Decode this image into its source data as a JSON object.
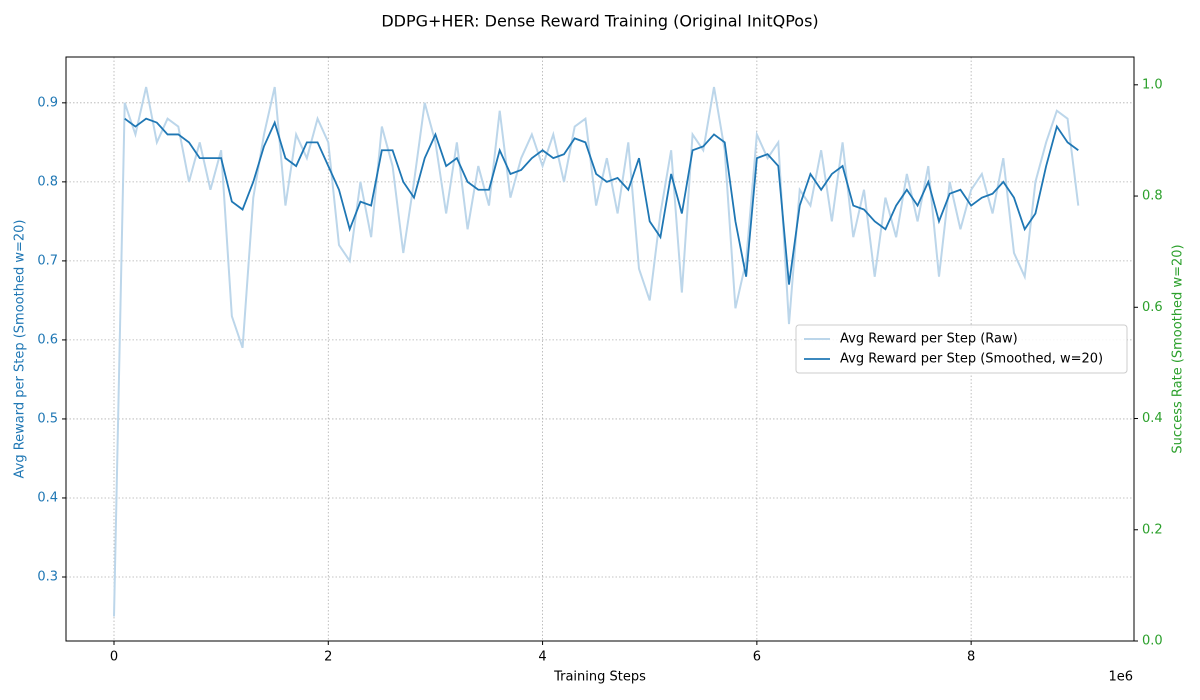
{
  "chart_data": {
    "type": "line",
    "title": "DDPG+HER: Dense Reward Training (Original InitQPos)",
    "xlabel": "Training Steps",
    "x_offset_label": "1e6",
    "ylabel": "Avg Reward per Step (Smoothed w=20)",
    "y2label": "Success Rate (Smoothed w=20)",
    "ylabel_color": "#1f77b4",
    "y2label_color": "#2ca02c",
    "x": [
      0,
      0.1,
      0.2,
      0.3,
      0.4,
      0.5,
      0.6,
      0.7,
      0.8,
      0.9,
      1.0,
      1.1,
      1.2,
      1.3,
      1.4,
      1.5,
      1.6,
      1.7,
      1.8,
      1.9,
      2.0,
      2.1,
      2.2,
      2.3,
      2.4,
      2.5,
      2.6,
      2.7,
      2.8,
      2.9,
      3.0,
      3.1,
      3.2,
      3.3,
      3.4,
      3.5,
      3.6,
      3.7,
      3.8,
      3.9,
      4.0,
      4.1,
      4.2,
      4.3,
      4.4,
      4.5,
      4.6,
      4.7,
      4.8,
      4.9,
      5.0,
      5.1,
      5.2,
      5.3,
      5.4,
      5.5,
      5.6,
      5.7,
      5.8,
      5.9,
      6.0,
      6.1,
      6.2,
      6.3,
      6.4,
      6.5,
      6.6,
      6.7,
      6.8,
      6.9,
      7.0,
      7.1,
      7.2,
      7.3,
      7.4,
      7.5,
      7.6,
      7.7,
      7.8,
      7.9,
      8.0,
      8.1,
      8.2,
      8.3,
      8.4,
      8.5,
      8.6,
      8.7,
      8.8,
      8.9,
      9.0
    ],
    "series": [
      {
        "name": "Avg Reward per Step (Raw)",
        "color": "#bcd6ea",
        "width": 2,
        "values": [
          0.25,
          0.9,
          0.86,
          0.92,
          0.85,
          0.88,
          0.87,
          0.8,
          0.85,
          0.79,
          0.84,
          0.63,
          0.59,
          0.78,
          0.86,
          0.92,
          0.77,
          0.86,
          0.83,
          0.88,
          0.85,
          0.72,
          0.7,
          0.8,
          0.73,
          0.87,
          0.82,
          0.71,
          0.8,
          0.9,
          0.85,
          0.76,
          0.85,
          0.74,
          0.82,
          0.77,
          0.89,
          0.78,
          0.83,
          0.86,
          0.82,
          0.86,
          0.8,
          0.87,
          0.88,
          0.77,
          0.83,
          0.76,
          0.85,
          0.69,
          0.65,
          0.76,
          0.84,
          0.66,
          0.86,
          0.84,
          0.92,
          0.84,
          0.64,
          0.7,
          0.86,
          0.83,
          0.85,
          0.62,
          0.79,
          0.77,
          0.84,
          0.75,
          0.85,
          0.73,
          0.79,
          0.68,
          0.78,
          0.73,
          0.81,
          0.75,
          0.82,
          0.68,
          0.8,
          0.74,
          0.79,
          0.81,
          0.76,
          0.83,
          0.71,
          0.68,
          0.8,
          0.85,
          0.89,
          0.88,
          0.77
        ]
      },
      {
        "name": "Avg Reward per Step (Smoothed, w=20)",
        "color": "#1f77b4",
        "width": 1.8,
        "values": [
          null,
          0.88,
          0.87,
          0.88,
          0.875,
          0.86,
          0.86,
          0.85,
          0.83,
          0.83,
          0.83,
          0.775,
          0.765,
          0.8,
          0.845,
          0.875,
          0.83,
          0.82,
          0.85,
          0.85,
          0.82,
          0.79,
          0.74,
          0.775,
          0.77,
          0.84,
          0.84,
          0.8,
          0.78,
          0.83,
          0.86,
          0.82,
          0.83,
          0.8,
          0.79,
          0.79,
          0.84,
          0.81,
          0.815,
          0.83,
          0.84,
          0.83,
          0.835,
          0.855,
          0.85,
          0.81,
          0.8,
          0.805,
          0.79,
          0.83,
          0.75,
          0.73,
          0.81,
          0.76,
          0.84,
          0.845,
          0.86,
          0.85,
          0.75,
          0.68,
          0.83,
          0.835,
          0.82,
          0.67,
          0.77,
          0.81,
          0.79,
          0.81,
          0.82,
          0.77,
          0.765,
          0.75,
          0.74,
          0.77,
          0.79,
          0.77,
          0.8,
          0.75,
          0.785,
          0.79,
          0.77,
          0.78,
          0.785,
          0.8,
          0.78,
          0.74,
          0.76,
          0.82,
          0.87,
          0.85,
          0.84
        ]
      }
    ],
    "xlim": [
      -0.448,
      9.52
    ],
    "ylim": [
      0.219,
      0.958
    ],
    "y2lim": [
      0,
      1.05
    ],
    "xticks": [
      0,
      2,
      4,
      6,
      8
    ],
    "yticks": [
      0.3,
      0.4,
      0.5,
      0.6,
      0.7,
      0.8,
      0.9
    ],
    "y2ticks": [
      {
        "value": 0,
        "label": "0.0"
      },
      0.2,
      0.4,
      0.6,
      0.8,
      {
        "value": 1,
        "label": "1.0"
      }
    ],
    "grid": true,
    "legend": "center right"
  }
}
